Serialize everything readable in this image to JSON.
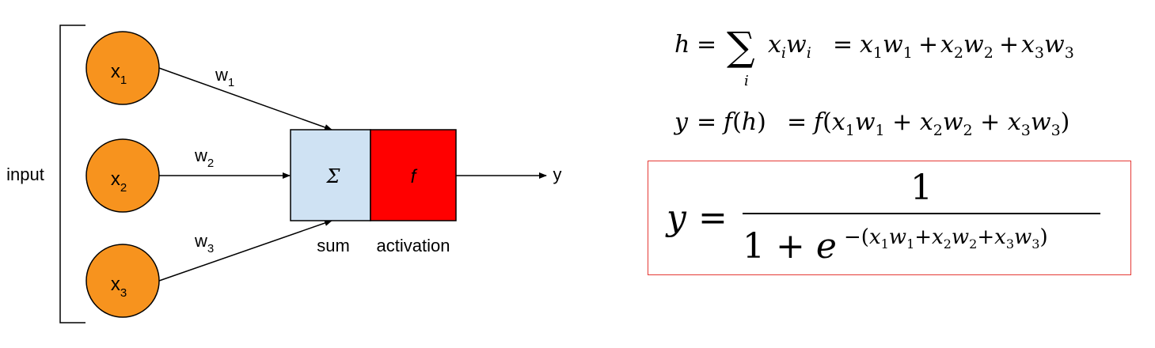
{
  "diagram": {
    "input_label": "input",
    "inputs": [
      {
        "name": "x",
        "sub": "1"
      },
      {
        "name": "x",
        "sub": "2"
      },
      {
        "name": "x",
        "sub": "3"
      }
    ],
    "weights": [
      {
        "name": "w",
        "sub": "1"
      },
      {
        "name": "w",
        "sub": "2"
      },
      {
        "name": "w",
        "sub": "3"
      }
    ],
    "sum_symbol": "Σ",
    "activation_symbol": "f",
    "sum_label": "sum",
    "activation_label": "activation",
    "output_label": "y",
    "colors": {
      "input_node": "#f7931e",
      "sum_box": "#cfe2f3",
      "activation_box": "#ff0000",
      "formula_border": "#e53935"
    }
  },
  "equations": {
    "eq1": "h = Σ_i x_i w_i = x_1 w_1 + x_2 w_2 + x_3 w_3",
    "eq2": "y = f(h) = f(x_1 w_1 + x_2 w_2 + x_3 w_3)",
    "eq3": "y = 1 / (1 + e^-(x_1 w_1 + x_2 w_2 + x_3 w_3))"
  }
}
